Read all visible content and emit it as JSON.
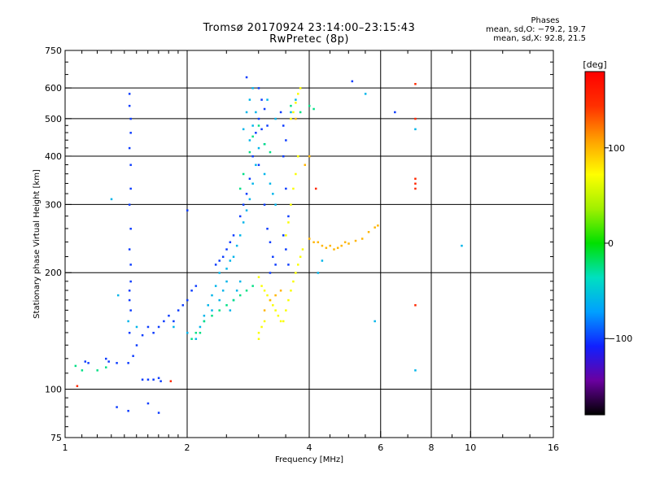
{
  "header": {
    "title_line1": "Tromsø 20170924 23:14:00–23:15:43",
    "title_line2": "RwPretec (8p)"
  },
  "stats": {
    "heading": "Phases",
    "o_line": "mean, sd,O: −79.2, 19.7",
    "x_line": "mean, sd,X:  92.8, 21.5"
  },
  "chart_data": {
    "type": "scatter",
    "title": "Tromsø 20170924 23:14:00–23:15:43",
    "subtitle": "RwPretec (8p)",
    "xlabel": "Frequency [MHz]",
    "ylabel": "Stationary phase Virtual Height [km]",
    "x_scale": "log",
    "y_scale": "log",
    "xlim": [
      1,
      16
    ],
    "ylim": [
      75,
      750
    ],
    "x_ticks": [
      1,
      2,
      4,
      6,
      8,
      10,
      16
    ],
    "x_tick_labels": [
      "1",
      "2",
      "4",
      "6",
      "8",
      "10",
      "16"
    ],
    "x_gridlines": [
      2,
      4,
      6,
      8,
      10
    ],
    "y_ticks": [
      75,
      100,
      200,
      300,
      400,
      500,
      600,
      750
    ],
    "y_tick_labels": [
      "75",
      "100",
      "200",
      "300",
      "400",
      "500",
      "600",
      "750"
    ],
    "y_gridlines": [
      100,
      200,
      300,
      400,
      500,
      600
    ],
    "grid": true,
    "colorbar": {
      "label": "[deg]",
      "range": [
        -180,
        180
      ],
      "ticks": [
        100,
        0,
        -100
      ],
      "tick_labels": [
        "100",
        "0",
        "−100"
      ],
      "colors": [
        "#000000",
        "#6a00a0",
        "#1020ff",
        "#00a0ff",
        "#00e0c0",
        "#00e000",
        "#a0f000",
        "#ffff00",
        "#ffa000",
        "#ff3000",
        "#ff0000"
      ]
    },
    "series": [
      {
        "phase": -100,
        "points": [
          [
            1.44,
            580
          ],
          [
            1.44,
            540
          ],
          [
            1.45,
            500
          ],
          [
            1.45,
            460
          ],
          [
            1.44,
            420
          ],
          [
            1.45,
            380
          ],
          [
            1.45,
            330
          ],
          [
            1.44,
            300
          ],
          [
            1.45,
            260
          ],
          [
            1.44,
            230
          ],
          [
            1.45,
            210
          ],
          [
            1.45,
            190
          ],
          [
            1.44,
            180
          ],
          [
            1.44,
            170
          ],
          [
            1.45,
            160
          ],
          [
            1.44,
            140
          ],
          [
            1.34,
            90
          ],
          [
            1.43,
            88
          ],
          [
            1.7,
            87
          ],
          [
            1.6,
            92
          ],
          [
            1.12,
            118
          ],
          [
            1.14,
            117
          ],
          [
            1.26,
            120
          ],
          [
            1.28,
            118
          ],
          [
            1.34,
            117
          ],
          [
            1.43,
            117
          ],
          [
            1.47,
            122
          ],
          [
            1.5,
            130
          ],
          [
            1.55,
            138
          ],
          [
            1.6,
            145
          ],
          [
            1.65,
            140
          ],
          [
            1.7,
            145
          ],
          [
            1.75,
            150
          ],
          [
            1.8,
            155
          ],
          [
            1.85,
            150
          ],
          [
            1.9,
            160
          ],
          [
            1.95,
            165
          ],
          [
            2.0,
            170
          ],
          [
            2.05,
            180
          ],
          [
            2.1,
            185
          ],
          [
            1.55,
            106
          ],
          [
            1.6,
            106
          ],
          [
            1.65,
            106
          ],
          [
            1.7,
            107
          ],
          [
            1.72,
            105
          ],
          [
            2.35,
            210
          ],
          [
            2.4,
            215
          ],
          [
            2.45,
            220
          ],
          [
            2.5,
            230
          ],
          [
            2.55,
            240
          ],
          [
            2.6,
            250
          ],
          [
            2.7,
            280
          ],
          [
            2.75,
            300
          ],
          [
            2.8,
            320
          ],
          [
            2.85,
            350
          ],
          [
            2.9,
            400
          ],
          [
            2.95,
            460
          ],
          [
            3.0,
            500
          ],
          [
            3.05,
            470
          ],
          [
            3.1,
            430
          ],
          [
            3.0,
            600
          ],
          [
            3.05,
            560
          ],
          [
            3.1,
            530
          ],
          [
            3.15,
            480
          ],
          [
            3.0,
            380
          ],
          [
            3.1,
            300
          ],
          [
            3.15,
            260
          ],
          [
            3.2,
            240
          ],
          [
            3.25,
            220
          ],
          [
            3.3,
            210
          ],
          [
            3.2,
            200
          ],
          [
            3.4,
            520
          ],
          [
            3.45,
            480
          ],
          [
            3.5,
            440
          ],
          [
            3.45,
            400
          ],
          [
            3.5,
            330
          ],
          [
            3.55,
            280
          ],
          [
            3.45,
            250
          ],
          [
            3.5,
            230
          ],
          [
            3.55,
            210
          ],
          [
            5.1,
            625
          ],
          [
            6.5,
            520
          ],
          [
            2.0,
            290
          ],
          [
            2.8,
            640
          ]
        ]
      },
      {
        "phase": -60,
        "points": [
          [
            2.2,
            155
          ],
          [
            2.25,
            165
          ],
          [
            2.3,
            175
          ],
          [
            2.35,
            185
          ],
          [
            2.4,
            200
          ],
          [
            2.5,
            205
          ],
          [
            2.55,
            215
          ],
          [
            2.6,
            220
          ],
          [
            2.65,
            235
          ],
          [
            2.7,
            250
          ],
          [
            2.75,
            270
          ],
          [
            2.8,
            290
          ],
          [
            2.85,
            310
          ],
          [
            2.9,
            340
          ],
          [
            2.95,
            380
          ],
          [
            3.0,
            420
          ],
          [
            2.75,
            470
          ],
          [
            2.8,
            520
          ],
          [
            2.85,
            560
          ],
          [
            2.9,
            600
          ],
          [
            1.3,
            310
          ],
          [
            1.35,
            175
          ],
          [
            1.43,
            150
          ],
          [
            1.5,
            145
          ],
          [
            1.85,
            145
          ],
          [
            2.0,
            140
          ],
          [
            2.1,
            135
          ],
          [
            2.15,
            145
          ],
          [
            2.2,
            150
          ],
          [
            2.3,
            160
          ],
          [
            2.4,
            170
          ],
          [
            2.45,
            180
          ],
          [
            2.5,
            190
          ],
          [
            2.55,
            160
          ],
          [
            2.6,
            170
          ],
          [
            2.65,
            180
          ],
          [
            2.7,
            190
          ],
          [
            2.85,
            440
          ],
          [
            2.9,
            480
          ],
          [
            2.95,
            520
          ],
          [
            3.1,
            360
          ],
          [
            3.2,
            340
          ],
          [
            3.25,
            320
          ],
          [
            3.3,
            300
          ],
          [
            3.15,
            560
          ],
          [
            3.3,
            500
          ],
          [
            4.2,
            200
          ],
          [
            4.3,
            215
          ],
          [
            3.6,
            520
          ],
          [
            3.7,
            560
          ],
          [
            5.5,
            580
          ],
          [
            7.3,
            470
          ],
          [
            9.5,
            235
          ],
          [
            5.8,
            150
          ],
          [
            7.3,
            112
          ]
        ]
      },
      {
        "phase": -25,
        "points": [
          [
            1.06,
            115
          ],
          [
            1.1,
            112
          ],
          [
            1.2,
            112
          ],
          [
            1.26,
            114
          ],
          [
            2.05,
            135
          ],
          [
            2.1,
            140
          ],
          [
            2.15,
            140
          ],
          [
            2.2,
            150
          ],
          [
            2.3,
            155
          ],
          [
            2.4,
            160
          ],
          [
            2.5,
            165
          ],
          [
            2.6,
            170
          ],
          [
            2.7,
            175
          ],
          [
            2.8,
            180
          ],
          [
            2.9,
            185
          ],
          [
            2.7,
            330
          ],
          [
            2.75,
            360
          ],
          [
            2.85,
            410
          ],
          [
            2.9,
            450
          ],
          [
            3.0,
            480
          ],
          [
            3.1,
            430
          ],
          [
            3.2,
            410
          ],
          [
            4.0,
            540
          ],
          [
            4.1,
            530
          ],
          [
            3.8,
            520
          ],
          [
            3.6,
            540
          ]
        ]
      },
      {
        "phase": 70,
        "points": [
          [
            3.0,
            195
          ],
          [
            3.05,
            185
          ],
          [
            3.1,
            180
          ],
          [
            3.15,
            175
          ],
          [
            3.2,
            170
          ],
          [
            3.25,
            165
          ],
          [
            3.3,
            160
          ],
          [
            3.35,
            155
          ],
          [
            3.4,
            150
          ],
          [
            3.45,
            150
          ],
          [
            3.5,
            160
          ],
          [
            3.55,
            170
          ],
          [
            3.6,
            180
          ],
          [
            3.65,
            190
          ],
          [
            3.7,
            200
          ],
          [
            3.75,
            210
          ],
          [
            3.8,
            220
          ],
          [
            3.85,
            230
          ],
          [
            3.0,
            140
          ],
          [
            3.05,
            145
          ],
          [
            3.1,
            150
          ],
          [
            3.0,
            135
          ],
          [
            3.5,
            250
          ],
          [
            3.55,
            270
          ],
          [
            3.6,
            300
          ],
          [
            3.65,
            330
          ],
          [
            3.7,
            360
          ],
          [
            3.75,
            400
          ],
          [
            3.6,
            500
          ],
          [
            3.65,
            520
          ],
          [
            3.7,
            550
          ],
          [
            3.75,
            580
          ],
          [
            3.8,
            600
          ]
        ]
      },
      {
        "phase": 100,
        "points": [
          [
            4.0,
            245
          ],
          [
            4.1,
            240
          ],
          [
            4.2,
            240
          ],
          [
            4.3,
            235
          ],
          [
            4.4,
            232
          ],
          [
            4.5,
            235
          ],
          [
            4.6,
            230
          ],
          [
            4.7,
            232
          ],
          [
            4.8,
            235
          ],
          [
            4.9,
            240
          ],
          [
            5.0,
            238
          ],
          [
            5.2,
            242
          ],
          [
            5.4,
            245
          ],
          [
            5.6,
            255
          ],
          [
            5.8,
            262
          ],
          [
            5.9,
            265
          ],
          [
            3.1,
            160
          ],
          [
            3.2,
            170
          ],
          [
            3.3,
            175
          ],
          [
            3.4,
            180
          ],
          [
            3.9,
            380
          ],
          [
            4.0,
            400
          ],
          [
            3.7,
            500
          ]
        ]
      },
      {
        "phase": 150,
        "points": [
          [
            7.3,
            615
          ],
          [
            7.3,
            500
          ],
          [
            7.3,
            350
          ],
          [
            7.3,
            340
          ],
          [
            7.3,
            330
          ],
          [
            7.3,
            165
          ],
          [
            4.15,
            330
          ],
          [
            1.82,
            105
          ],
          [
            1.07,
            102
          ]
        ]
      }
    ]
  }
}
